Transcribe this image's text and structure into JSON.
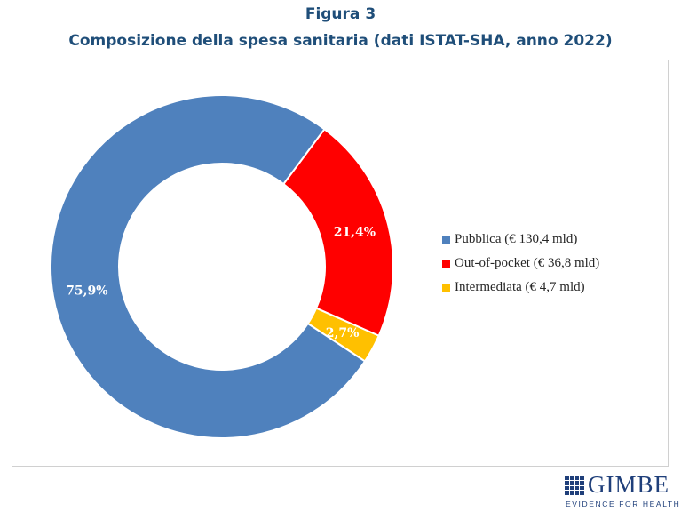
{
  "figure": {
    "number": "Figura 3",
    "subtitle": "Composizione della spesa sanitaria (dati ISTAT-SHA, anno 2022)"
  },
  "chart_data": {
    "type": "pie",
    "variant": "donut",
    "title": "Composizione della spesa sanitaria (dati ISTAT-SHA, anno 2022)",
    "categories": [
      "Pubblica",
      "Out-of-pocket",
      "Intermediata"
    ],
    "values": [
      75.9,
      21.4,
      2.7
    ],
    "value_labels": [
      "75,9%",
      "21,4%",
      "2,7%"
    ],
    "legend_labels": [
      "Pubblica (€ 130,4 mld)",
      "Out-of-pocket (€ 36,8 mld)",
      "Intermediata (€ 4,7 mld)"
    ],
    "colors": [
      "#4f81bd",
      "#ff0000",
      "#ffc000"
    ],
    "legend_position": "right"
  },
  "logo": {
    "name": "GIMBE",
    "tagline": "EVIDENCE FOR HEALTH"
  }
}
